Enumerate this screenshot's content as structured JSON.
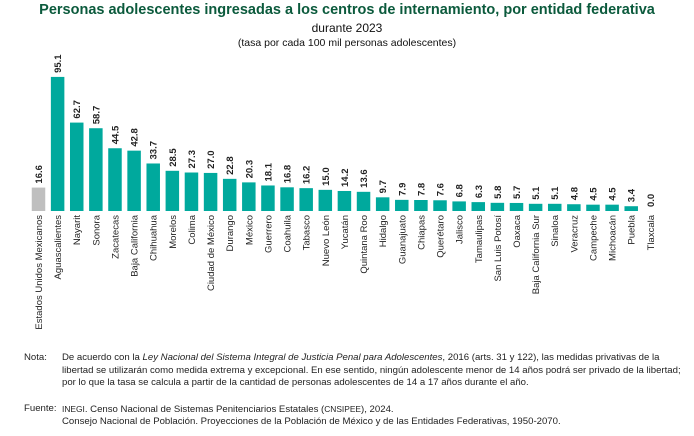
{
  "header": {
    "title": "Personas adolescentes ingresadas a los centros de internamiento, por entidad federativa",
    "subtitle": "durante 2023",
    "unit": "(tasa por cada 100 mil personas adolescentes)"
  },
  "colors": {
    "national_bar": "#bfbfbf",
    "state_bar": "#00a99d",
    "title": "#0b5a3c"
  },
  "chart_data": {
    "type": "bar",
    "title": "Personas adolescentes ingresadas a los centros de internamiento, por entidad federativa",
    "categories": [
      "Estados Unidos Mexicanos",
      "Aguascalientes",
      "Nayarit",
      "Sonora",
      "Zacatecas",
      "Baja California",
      "Chihuahua",
      "Morelos",
      "Colima",
      "Ciudad de México",
      "Durango",
      "México",
      "Guerrero",
      "Coahuila",
      "Tabasco",
      "Nuevo León",
      "Yucatán",
      "Quintana Roo",
      "Hidalgo",
      "Guanajuato",
      "Chiapas",
      "Querétaro",
      "Jalisco",
      "Tamaulipas",
      "San Luis Potosí",
      "Oaxaca",
      "Baja California Sur",
      "Sinaloa",
      "Veracruz",
      "Campeche",
      "Michoacán",
      "Puebla",
      "Tlaxcala"
    ],
    "values": [
      16.6,
      95.1,
      62.7,
      58.7,
      44.5,
      42.8,
      33.7,
      28.5,
      27.3,
      27.0,
      22.8,
      20.3,
      18.1,
      16.8,
      16.2,
      15.0,
      14.2,
      13.6,
      9.7,
      7.9,
      7.8,
      7.6,
      6.8,
      6.3,
      5.8,
      5.7,
      5.1,
      5.1,
      4.8,
      4.5,
      4.5,
      3.4,
      0.0
    ],
    "value_labels": [
      "16.6",
      "95.1",
      "62.7",
      "58.7",
      "44.5",
      "42.8",
      "33.7",
      "28.5",
      "27.3",
      "27.0",
      "22.8",
      "20.3",
      "18.1",
      "16.8",
      "16.2",
      "15.0",
      "14.2",
      "13.6",
      "9.7",
      "7.9",
      "7.8",
      "7.6",
      "6.8",
      "6.3",
      "5.8",
      "5.7",
      "5.1",
      "5.1",
      "4.8",
      "4.5",
      "4.5",
      "3.4",
      "0.0"
    ],
    "highlight_first_bar": true,
    "ylim": [
      0,
      100
    ],
    "grid": false,
    "xlabel": "",
    "ylabel": ""
  },
  "notes": {
    "note_label": "Nota:",
    "note_text_1": "De acuerdo con la ",
    "note_law": "Ley Nacional del Sistema Integral de Justicia Penal para Adolescentes",
    "note_text_2": ", 2016 (arts. 31 y 122), las medidas privativas de la libertad se utilizarán como medida extrema y excepcional. En ese sentido, ningún adolescente menor de 14 años podrá ser privado de la libertad; por lo que la tasa se calcula a partir de la cantidad de personas adolescentes de 14 a 17 años durante el año.",
    "source_label": "Fuente:",
    "source_inegi": "INEGI",
    "source_text_1": ". Censo Nacional de Sistemas Penitenciarios Estatales (",
    "source_cnsipee": "CNSIPEE",
    "source_text_2": "), 2024.",
    "source_line_2": "Consejo Nacional de Población. Proyecciones de la Población de México y de las Entidades Federativas, 1950-2070."
  }
}
